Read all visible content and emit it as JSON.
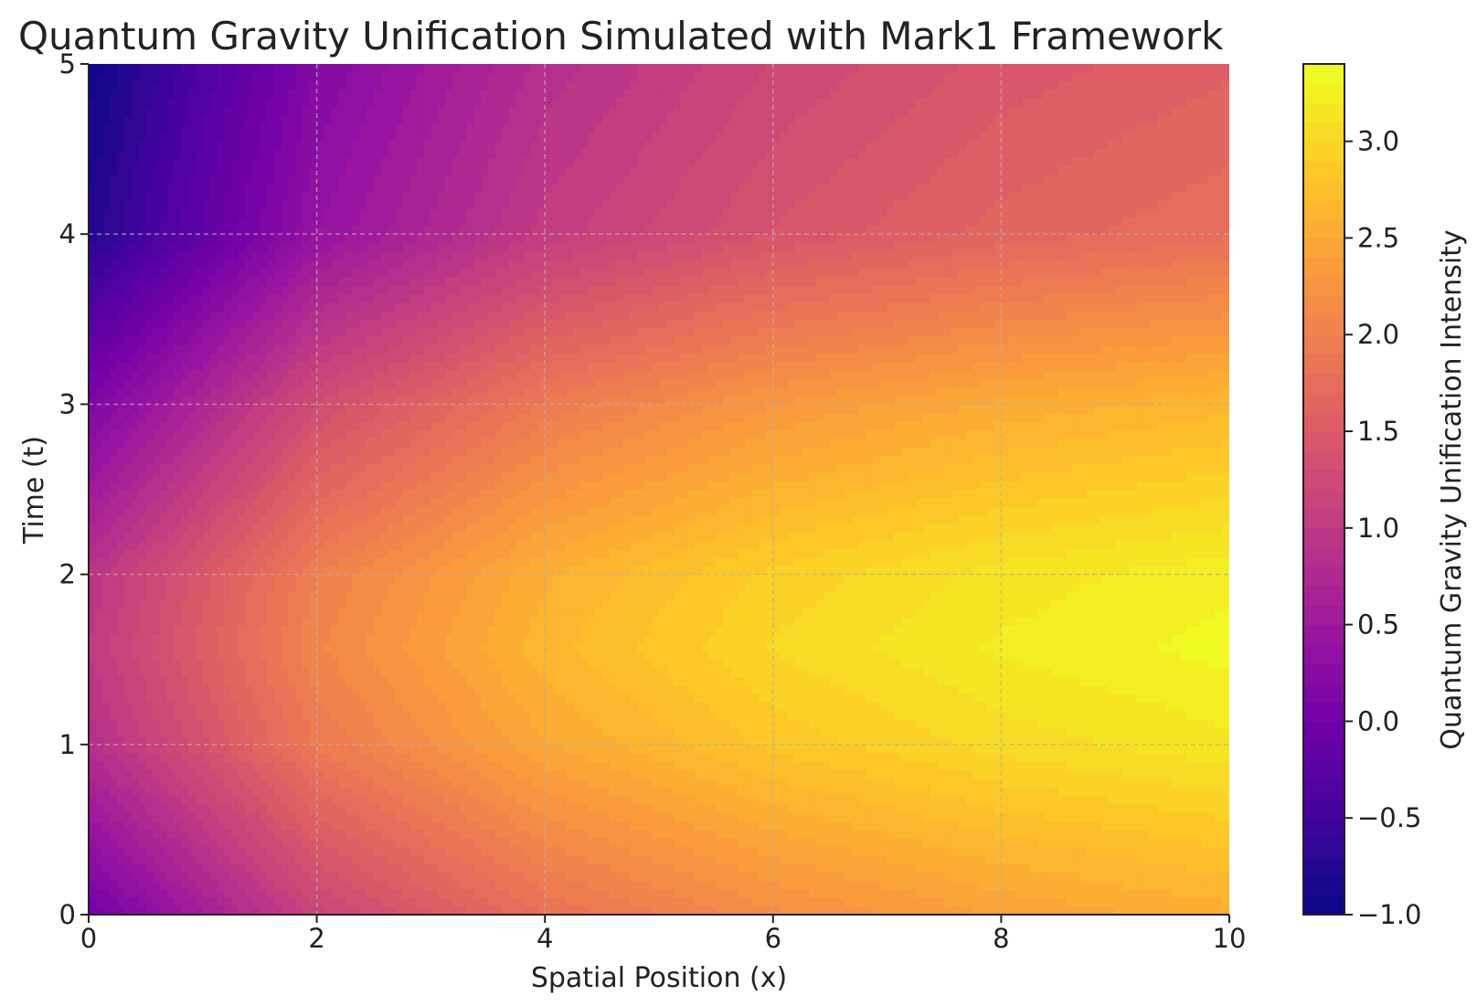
{
  "chart_data": {
    "type": "heatmap",
    "title": "Quantum Gravity Unification Simulated with Mark1 Framework",
    "xlabel": "Spatial Position (x)",
    "ylabel": "Time (t)",
    "xlim": [
      0,
      10
    ],
    "ylim": [
      0,
      5
    ],
    "xticks": [
      "0",
      "2",
      "4",
      "6",
      "8",
      "10"
    ],
    "yticks": [
      "0",
      "1",
      "2",
      "3",
      "4",
      "5"
    ],
    "grid": true,
    "colormap": "plasma",
    "colorbar": {
      "label": "Quantum Gravity Unification Intensity",
      "range": [
        -1.0,
        3.4
      ],
      "ticks": [
        "−1.0",
        "−0.5",
        "0.0",
        "0.5",
        "1.0",
        "1.5",
        "2.0",
        "2.5",
        "3.0"
      ]
    },
    "surface_samples": {
      "x": [
        0,
        2,
        4,
        6,
        8,
        10
      ],
      "t": [
        0,
        1,
        1.57,
        2,
        3,
        4,
        5
      ],
      "z_rows_by_t": [
        [
          0.0,
          1.17,
          1.81,
          2.18,
          2.41,
          2.56
        ],
        [
          0.84,
          1.91,
          2.49,
          2.83,
          3.04,
          3.17
        ],
        [
          1.0,
          2.08,
          2.66,
          3.01,
          3.22,
          3.34
        ],
        [
          0.91,
          2.0,
          2.58,
          2.93,
          3.14,
          3.27
        ],
        [
          0.14,
          1.3,
          1.93,
          2.3,
          2.53,
          2.67
        ],
        [
          -0.76,
          0.4,
          1.04,
          1.41,
          1.64,
          1.78
        ],
        [
          -0.96,
          0.2,
          0.84,
          1.21,
          1.44,
          1.58
        ]
      ]
    }
  },
  "colors": {
    "plasma_stops": [
      "#0d0887",
      "#46039f",
      "#7201a8",
      "#9c179e",
      "#bd3786",
      "#d8576b",
      "#ed7953",
      "#fb9f3a",
      "#fdca26",
      "#f0f921"
    ],
    "grid": "#b0b0b0",
    "axis": "#222222"
  }
}
